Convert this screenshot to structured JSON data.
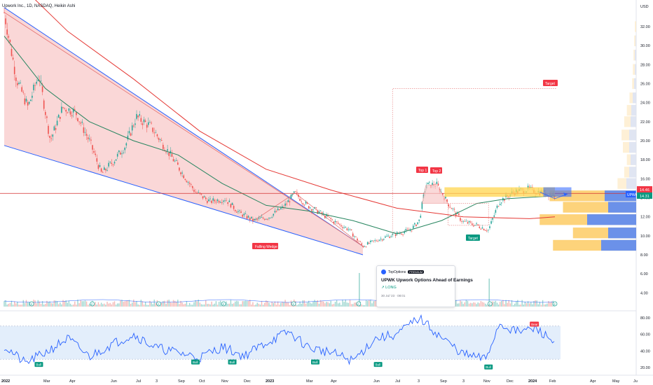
{
  "header": {
    "title": "Upwork Inc., 1D, NASDAQ, Heikin Ashi"
  },
  "price_axis": {
    "currency": "USD",
    "ticks": [
      "32.00",
      "30.00",
      "28.00",
      "26.00",
      "24.00",
      "22.00",
      "20.00",
      "18.00",
      "16.00",
      "14.00",
      "12.00",
      "10.00",
      "8.00",
      "6.00",
      "4.00"
    ],
    "last_price_label": "14.46",
    "symbol_label": "UPWK",
    "symbol_price": "14.31"
  },
  "rsi_axis": {
    "ticks": [
      "80.00",
      "60.00",
      "40.00",
      "20.00"
    ]
  },
  "time_axis": [
    "2022",
    "Mar",
    "Apr",
    "Jun",
    "Jul",
    "3",
    "Sep",
    "Oct",
    "Nov",
    "Dec",
    "2023",
    "Mar",
    "Apr",
    "Jun",
    "Jul",
    "3",
    "Sep",
    "3",
    "Nov",
    "Dec",
    "2024",
    "Feb",
    "Apr",
    "May",
    "Ju"
  ],
  "annotations": {
    "falling_wedge": "Falling Wedge",
    "top1": "Top 1",
    "top2": "Top 2",
    "target_down": "Target",
    "target_up": "Target",
    "bull": "Bull",
    "bear": "Bear",
    "earnings": "E"
  },
  "news": {
    "source": "TopOptions",
    "badge": "PREMIUM",
    "title": "UPWK Upwork Options Ahead of Earnings",
    "bias": "LONG",
    "date": "30 Jul '23 · 08:01"
  },
  "colors": {
    "bull": "#26a69a",
    "bear": "#ef5350",
    "ma_fast": "#26855f",
    "ma_slow": "#e53935",
    "wedge_line": "#2962ff",
    "wedge_fill": "#f8c9c9",
    "rsi_line": "#2962ff",
    "rsi_band": "#e3eefb",
    "vp_blue": "#5b8af5",
    "vp_orange": "#fcc85a"
  },
  "chart_data": {
    "type": "candlestick",
    "title": "Upwork Inc., 1D, NASDAQ, Heikin Ashi",
    "ylim": [
      4,
      34
    ],
    "rsi_ylim": [
      20,
      85
    ],
    "rsi_levels": [
      70,
      30
    ],
    "horizontal_line": 14.46,
    "last_price": 14.31,
    "price_path": [
      {
        "x": "2022-01-03",
        "y": 33.5
      },
      {
        "x": "2022-01-20",
        "y": 26.5
      },
      {
        "x": "2022-02-05",
        "y": 23.5
      },
      {
        "x": "2022-02-20",
        "y": 27.0
      },
      {
        "x": "2022-03-08",
        "y": 20.0
      },
      {
        "x": "2022-03-25",
        "y": 23.5
      },
      {
        "x": "2022-04-12",
        "y": 23.0
      },
      {
        "x": "2022-05-02",
        "y": 19.8
      },
      {
        "x": "2022-05-18",
        "y": 16.5
      },
      {
        "x": "2022-06-05",
        "y": 18.0
      },
      {
        "x": "2022-06-20",
        "y": 19.5
      },
      {
        "x": "2022-07-05",
        "y": 22.5
      },
      {
        "x": "2022-07-25",
        "y": 21.5
      },
      {
        "x": "2022-08-15",
        "y": 19.2
      },
      {
        "x": "2022-09-05",
        "y": 16.8
      },
      {
        "x": "2022-09-25",
        "y": 14.6
      },
      {
        "x": "2022-10-15",
        "y": 13.6
      },
      {
        "x": "2022-11-05",
        "y": 13.9
      },
      {
        "x": "2022-11-25",
        "y": 12.4
      },
      {
        "x": "2022-12-15",
        "y": 11.6
      },
      {
        "x": "2023-01-05",
        "y": 12.0
      },
      {
        "x": "2023-01-25",
        "y": 13.0
      },
      {
        "x": "2023-02-10",
        "y": 14.5
      },
      {
        "x": "2023-02-25",
        "y": 13.3
      },
      {
        "x": "2023-03-15",
        "y": 12.5
      },
      {
        "x": "2023-04-05",
        "y": 11.5
      },
      {
        "x": "2023-04-25",
        "y": 10.7
      },
      {
        "x": "2023-05-15",
        "y": 8.9
      },
      {
        "x": "2023-06-05",
        "y": 9.6
      },
      {
        "x": "2023-06-25",
        "y": 10.1
      },
      {
        "x": "2023-07-20",
        "y": 10.6
      },
      {
        "x": "2023-08-01",
        "y": 11.6
      },
      {
        "x": "2023-08-10",
        "y": 15.3
      },
      {
        "x": "2023-08-25",
        "y": 15.4
      },
      {
        "x": "2023-09-10",
        "y": 13.4
      },
      {
        "x": "2023-09-30",
        "y": 11.5
      },
      {
        "x": "2023-10-20",
        "y": 11.1
      },
      {
        "x": "2023-11-05",
        "y": 10.6
      },
      {
        "x": "2023-11-20",
        "y": 13.6
      },
      {
        "x": "2023-12-10",
        "y": 14.6
      },
      {
        "x": "2023-12-30",
        "y": 14.9
      },
      {
        "x": "2024-01-15",
        "y": 14.6
      },
      {
        "x": "2024-02-05",
        "y": 14.3
      }
    ],
    "ma_fast": [
      {
        "x": "2022-01-03",
        "y": 31.0
      },
      {
        "x": "2022-03-01",
        "y": 25.5
      },
      {
        "x": "2022-05-01",
        "y": 22.0
      },
      {
        "x": "2022-07-01",
        "y": 20.0
      },
      {
        "x": "2022-09-01",
        "y": 18.5
      },
      {
        "x": "2022-11-01",
        "y": 15.5
      },
      {
        "x": "2023-01-01",
        "y": 13.2
      },
      {
        "x": "2023-03-01",
        "y": 12.6
      },
      {
        "x": "2023-05-01",
        "y": 11.6
      },
      {
        "x": "2023-07-01",
        "y": 10.2
      },
      {
        "x": "2023-09-01",
        "y": 11.6
      },
      {
        "x": "2023-10-20",
        "y": 13.4
      },
      {
        "x": "2023-12-01",
        "y": 13.9
      },
      {
        "x": "2024-02-05",
        "y": 14.2
      }
    ],
    "ma_slow": [
      {
        "x": "2022-01-03",
        "y": 38.0
      },
      {
        "x": "2022-04-01",
        "y": 31.5
      },
      {
        "x": "2022-07-01",
        "y": 26.5
      },
      {
        "x": "2022-10-01",
        "y": 21.0
      },
      {
        "x": "2023-01-01",
        "y": 17.0
      },
      {
        "x": "2023-04-01",
        "y": 14.8
      },
      {
        "x": "2023-07-01",
        "y": 12.9
      },
      {
        "x": "2023-10-01",
        "y": 12.0
      },
      {
        "x": "2024-01-01",
        "y": 11.8
      },
      {
        "x": "2024-02-05",
        "y": 12.0
      }
    ],
    "wedge": {
      "upper": [
        {
          "x": "2022-01-03",
          "y": 34.0
        },
        {
          "x": "2023-05-15",
          "y": 8.9
        }
      ],
      "lower": [
        {
          "x": "2022-01-03",
          "y": 19.5
        },
        {
          "x": "2023-05-15",
          "y": 8.0
        }
      ]
    },
    "double_top": {
      "top1": 15.3,
      "top2": 15.4,
      "neckline": 13.4,
      "target": 11.1
    },
    "upside_target": 25.5,
    "rsi": [
      {
        "x": "2022-01-03",
        "y": 46
      },
      {
        "x": "2022-02-01",
        "y": 25
      },
      {
        "x": "2022-03-01",
        "y": 38
      },
      {
        "x": "2022-04-01",
        "y": 55
      },
      {
        "x": "2022-05-01",
        "y": 33
      },
      {
        "x": "2022-06-01",
        "y": 48
      },
      {
        "x": "2022-07-01",
        "y": 60
      },
      {
        "x": "2022-08-01",
        "y": 44
      },
      {
        "x": "2022-09-01",
        "y": 38
      },
      {
        "x": "2022-10-01",
        "y": 32
      },
      {
        "x": "2022-11-01",
        "y": 45
      },
      {
        "x": "2022-12-01",
        "y": 34
      },
      {
        "x": "2023-01-01",
        "y": 50
      },
      {
        "x": "2023-02-01",
        "y": 63
      },
      {
        "x": "2023-03-01",
        "y": 44
      },
      {
        "x": "2023-04-01",
        "y": 38
      },
      {
        "x": "2023-05-01",
        "y": 28
      },
      {
        "x": "2023-06-01",
        "y": 55
      },
      {
        "x": "2023-07-01",
        "y": 60
      },
      {
        "x": "2023-08-01",
        "y": 80
      },
      {
        "x": "2023-09-01",
        "y": 56
      },
      {
        "x": "2023-10-01",
        "y": 36
      },
      {
        "x": "2023-11-01",
        "y": 30
      },
      {
        "x": "2023-11-20",
        "y": 73
      },
      {
        "x": "2023-12-15",
        "y": 63
      },
      {
        "x": "2024-01-10",
        "y": 67
      },
      {
        "x": "2024-02-05",
        "y": 50
      }
    ]
  }
}
